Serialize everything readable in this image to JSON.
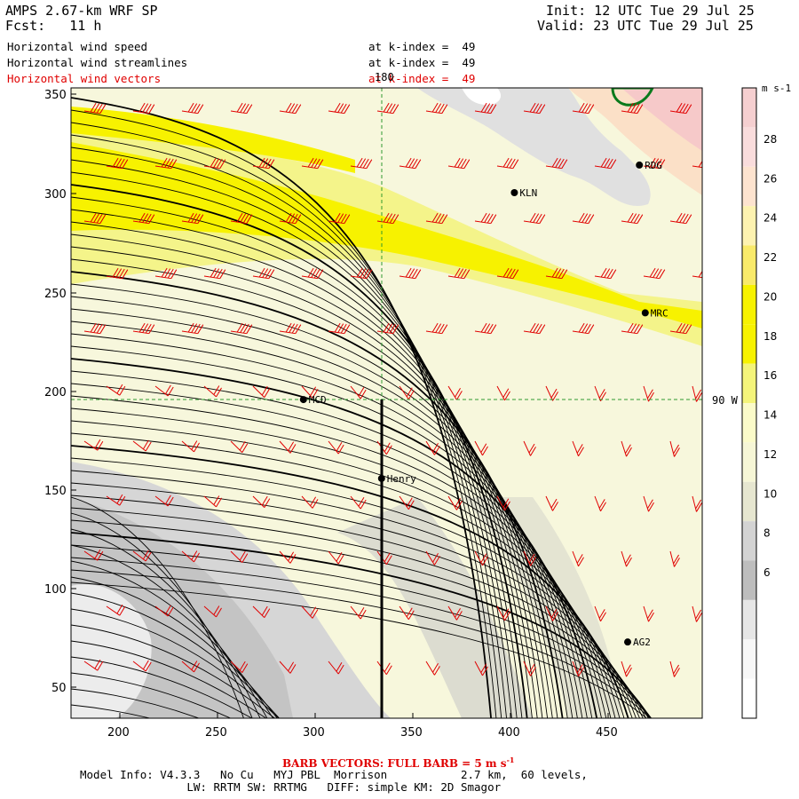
{
  "header": {
    "title": "AMPS 2.67-km WRF SP",
    "forecast": "Fcst:   11 h",
    "init": "Init: 12 UTC Tue 29 Jul 25",
    "valid": "Valid: 23 UTC Tue 29 Jul 25",
    "fields": [
      {
        "name": "Horizontal wind speed",
        "level": "at k-index =  49",
        "color": "#000000"
      },
      {
        "name": "Horizontal wind streamlines",
        "level": "at k-index =  49",
        "color": "#000000"
      },
      {
        "name": "Horizontal wind vectors",
        "level": "at k-index =  49",
        "color": "#e00000"
      }
    ]
  },
  "axes": {
    "x_ticks": [
      "200",
      "250",
      "300",
      "350",
      "400",
      "450"
    ],
    "y_ticks": [
      "350",
      "300",
      "250",
      "200",
      "150",
      "100",
      "50"
    ],
    "grid_labels": {
      "meridian_top": "180",
      "meridian_right": "90 W"
    }
  },
  "stations": [
    {
      "id": "KLN",
      "x": 402,
      "y": 300
    },
    {
      "id": "RDG",
      "x": 466,
      "y": 314
    },
    {
      "id": "MRC",
      "x": 469,
      "y": 239
    },
    {
      "id": "MCD",
      "x": 294,
      "y": 195
    },
    {
      "id": "Henry",
      "x": 334,
      "y": 155
    },
    {
      "id": "AG2",
      "x": 460,
      "y": 72
    }
  ],
  "colorbar": {
    "unit": "m s-1",
    "labels": [
      "28",
      "26",
      "24",
      "22",
      "20",
      "18",
      "16",
      "14",
      "12",
      "10",
      "8",
      "6"
    ],
    "colors": [
      "#f5cfd0",
      "#f9dcdc",
      "#fde3cf",
      "#fdf2b0",
      "#f9ea6a",
      "#f7f200",
      "#f7f200",
      "#f4f47a",
      "#fbfbc9",
      "#f6f6d6",
      "#e6e6d0",
      "#d3d3d3",
      "#bdbdbd",
      "#e6e6e6",
      "#f7f7f7",
      "#ffffff"
    ]
  },
  "footer": {
    "barb_note": "BARB VECTORS: FULL BARB = 5 m s",
    "barb_sup": "-1",
    "model_line1": "Model Info: V4.3.3   No Cu   MYJ PBL  Morrison           2.7 km,  60 levels,",
    "model_line2": "                LW: RRTM SW: RRTMG   DIFF: simple KM: 2D Smagor"
  }
}
